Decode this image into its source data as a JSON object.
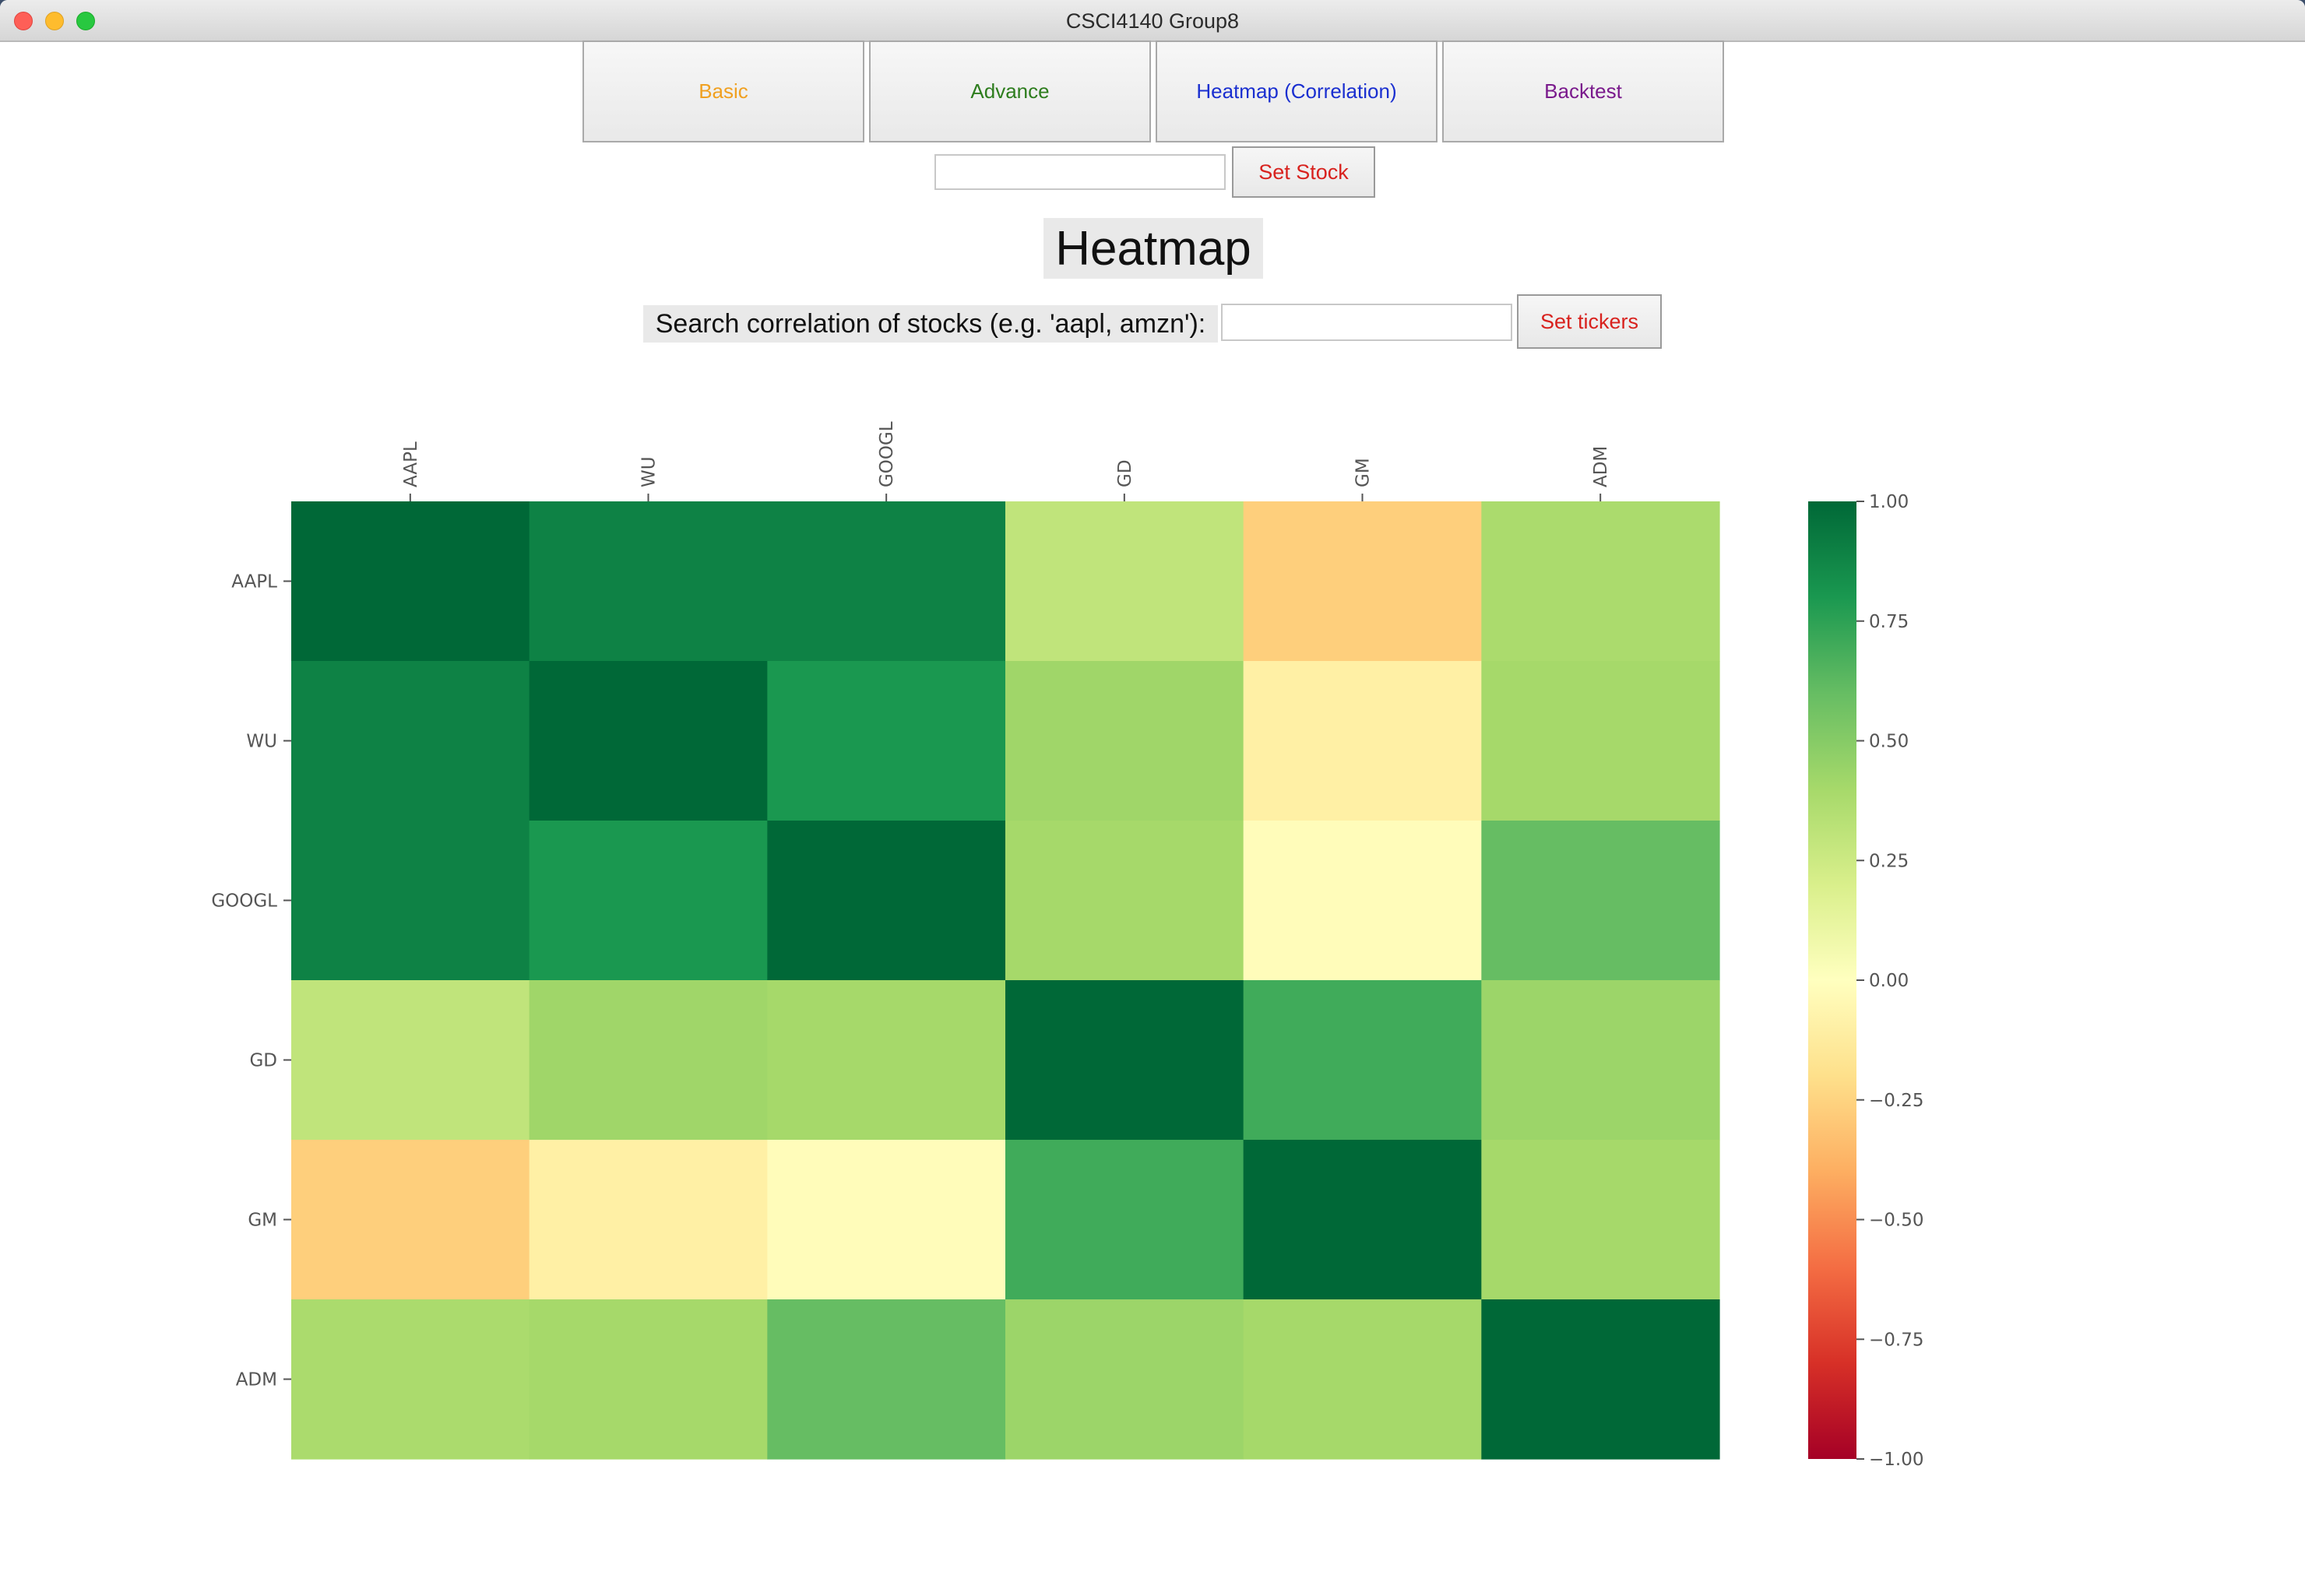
{
  "window": {
    "title": "CSCI4140 Group8"
  },
  "tabs": [
    {
      "label": "Basic",
      "color": "#f0a020"
    },
    {
      "label": "Advance",
      "color": "#2e7d1e"
    },
    {
      "label": "Heatmap (Correlation)",
      "color": "#1a2fd0"
    },
    {
      "label": "Backtest",
      "color": "#7a1a8c"
    }
  ],
  "stock": {
    "input_value": "",
    "button_label": "Set Stock"
  },
  "heading": "Heatmap",
  "search": {
    "label": "Search correlation of stocks (e.g. 'aapl, amzn'):",
    "input_value": "",
    "button_label": "Set tickers"
  },
  "chart_data": {
    "type": "heatmap",
    "colormap": "RdYlGn",
    "x_labels": [
      "AAPL",
      "WU",
      "GOOGL",
      "GD",
      "GM",
      "ADM"
    ],
    "y_labels": [
      "AAPL",
      "WU",
      "GOOGL",
      "GD",
      "GM",
      "ADM"
    ],
    "values": [
      [
        1.0,
        0.89,
        0.89,
        0.3,
        -0.27,
        0.38
      ],
      [
        0.89,
        1.0,
        0.8,
        0.42,
        -0.1,
        0.4
      ],
      [
        0.89,
        0.8,
        1.0,
        0.4,
        -0.02,
        0.6
      ],
      [
        0.3,
        0.42,
        0.4,
        1.0,
        0.7,
        0.43
      ],
      [
        -0.27,
        -0.1,
        -0.02,
        0.7,
        1.0,
        0.4
      ],
      [
        0.38,
        0.4,
        0.6,
        0.43,
        0.4,
        1.0
      ]
    ],
    "colorbar": {
      "range": [
        -1.0,
        1.0
      ],
      "tick_labels": [
        "1.00",
        "0.75",
        "0.50",
        "0.25",
        "0.00",
        "−0.25",
        "−0.50",
        "−0.75",
        "−1.00"
      ]
    }
  }
}
